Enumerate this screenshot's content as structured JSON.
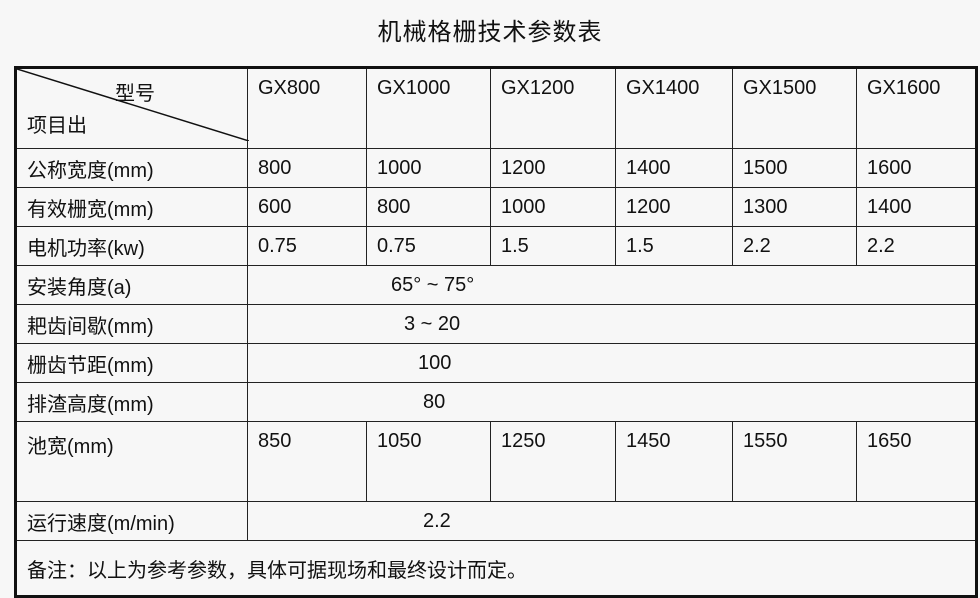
{
  "title": "机械格栅技术参数表",
  "header": {
    "corner_top": "型号",
    "corner_bottom": "项目出",
    "models": [
      "GX800",
      "GX1000",
      "GX1200",
      "GX1400",
      "GX1500",
      "GX1600"
    ]
  },
  "rows": [
    {
      "label": "公称宽度(mm)",
      "values": [
        "800",
        "1000",
        "1200",
        "1400",
        "1500",
        "1600"
      ]
    },
    {
      "label": "有效栅宽(mm)",
      "values": [
        "600",
        "800",
        "1000",
        "1200",
        "1300",
        "1400"
      ]
    },
    {
      "label": "电机功率(kw)",
      "values": [
        "0.75",
        "0.75",
        "1.5",
        "1.5",
        "2.2",
        "2.2"
      ]
    }
  ],
  "merged_rows": [
    {
      "label": "安装角度(a)",
      "value": "65° ~ 75°"
    },
    {
      "label": "耙齿间歇(mm)",
      "value": "3 ~ 20"
    },
    {
      "label": "栅齿节距(mm)",
      "value": "100"
    },
    {
      "label": "排渣高度(mm)",
      "value": "80"
    }
  ],
  "pool": {
    "label": "池宽(mm)",
    "values": [
      "850",
      "1050",
      "1250",
      "1450",
      "1550",
      "1650"
    ]
  },
  "speed": {
    "label": "运行速度(m/min)",
    "value": "2.2"
  },
  "note": "备注：以上为参考参数，具体可据现场和最终设计而定。"
}
